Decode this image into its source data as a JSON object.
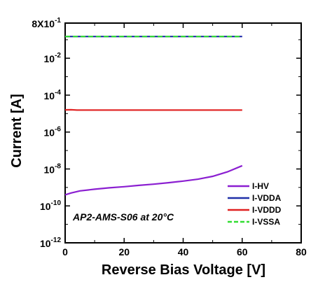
{
  "chart_data": {
    "type": "line",
    "title": "",
    "xlabel": "Reverse Bias Voltage [V]",
    "ylabel": "Current [A]",
    "xlim": [
      0,
      80
    ],
    "ylim_log10": [
      -12,
      -0.09691
    ],
    "y_scale": "log",
    "x_ticks": [
      "0",
      "20",
      "40",
      "60",
      "80"
    ],
    "y_ticks": [
      {
        "base": "8X10",
        "exp": "-1",
        "value": 0.8
      },
      {
        "base": "10",
        "exp": "-2",
        "value": 0.01
      },
      {
        "base": "10",
        "exp": "-4",
        "value": 0.0001
      },
      {
        "base": "10",
        "exp": "-6",
        "value": 1e-06
      },
      {
        "base": "10",
        "exp": "-8",
        "value": 1e-08
      },
      {
        "base": "10",
        "exp": "-10",
        "value": 1e-10
      },
      {
        "base": "10",
        "exp": "-12",
        "value": 1e-12
      }
    ],
    "annotation": "AP2-AMS-S06 at 20°C",
    "legend_position": "bottom-right",
    "series": [
      {
        "name": "I-HV",
        "color": "#8b1fd1",
        "dash": "solid",
        "x": [
          0,
          2,
          5,
          10,
          15,
          20,
          25,
          30,
          35,
          40,
          45,
          50,
          55,
          60
        ],
        "y": [
          4e-10,
          5e-10,
          6.5e-10,
          8e-10,
          9.5e-10,
          1.1e-09,
          1.3e-09,
          1.5e-09,
          1.8e-09,
          2.2e-09,
          2.8e-09,
          4e-09,
          7e-09,
          1.5e-08
        ]
      },
      {
        "name": "I-VDDA",
        "color": "#1f2fa8",
        "dash": "solid",
        "x": [
          0,
          60
        ],
        "y": [
          0.15,
          0.15
        ]
      },
      {
        "name": "I-VDDD",
        "color": "#e02020",
        "dash": "solid",
        "x": [
          0,
          2,
          4,
          60
        ],
        "y": [
          1.6e-05,
          1.62e-05,
          1.55e-05,
          1.55e-05
        ]
      },
      {
        "name": "I-VSSA",
        "color": "#33dd33",
        "dash": "dashed",
        "x": [
          0,
          60
        ],
        "y": [
          0.15,
          0.15
        ]
      }
    ]
  }
}
